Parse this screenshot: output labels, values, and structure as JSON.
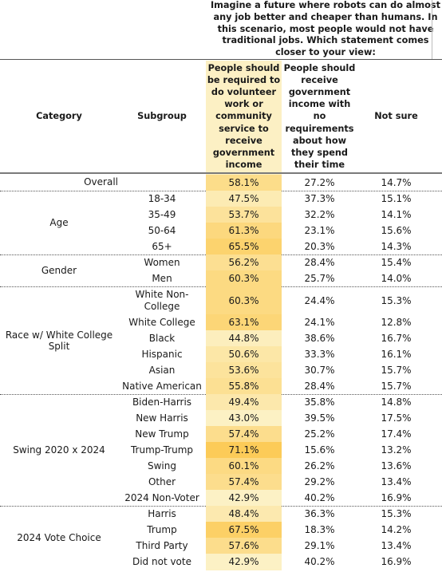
{
  "question": "Imagine a future where robots can do almost any job better and cheaper than humans. In this scenario, most people would not have traditional jobs. Which statement comes closer to your view:",
  "headers": {
    "category": "Category",
    "subgroup": "Subgroup",
    "col1": "People should be required to do volunteer work or community service to receive government income",
    "col2": "People should receive government income with no requirements about how they spend their time",
    "col3": "Not sure"
  },
  "groups": {
    "overall": "Overall",
    "age": "Age",
    "gender": "Gender",
    "race": "Race w/ White College Split",
    "swing": "Swing 2020 x 2024",
    "vote": "2024 Vote Choice"
  },
  "rows": [
    {
      "sub": "",
      "c1": "58.1%",
      "c2": "27.2%",
      "c3": "14.7%"
    },
    {
      "sub": "18-34",
      "c1": "47.5%",
      "c2": "37.3%",
      "c3": "15.1%"
    },
    {
      "sub": "35-49",
      "c1": "53.7%",
      "c2": "32.2%",
      "c3": "14.1%"
    },
    {
      "sub": "50-64",
      "c1": "61.3%",
      "c2": "23.1%",
      "c3": "15.6%"
    },
    {
      "sub": "65+",
      "c1": "65.5%",
      "c2": "20.3%",
      "c3": "14.3%"
    },
    {
      "sub": "Women",
      "c1": "56.2%",
      "c2": "28.4%",
      "c3": "15.4%"
    },
    {
      "sub": "Men",
      "c1": "60.3%",
      "c2": "25.7%",
      "c3": "14.0%"
    },
    {
      "sub": "White Non-College",
      "c1": "60.3%",
      "c2": "24.4%",
      "c3": "15.3%"
    },
    {
      "sub": "White College",
      "c1": "63.1%",
      "c2": "24.1%",
      "c3": "12.8%"
    },
    {
      "sub": "Black",
      "c1": "44.8%",
      "c2": "38.6%",
      "c3": "16.7%"
    },
    {
      "sub": "Hispanic",
      "c1": "50.6%",
      "c2": "33.3%",
      "c3": "16.1%"
    },
    {
      "sub": "Asian",
      "c1": "53.6%",
      "c2": "30.7%",
      "c3": "15.7%"
    },
    {
      "sub": "Native American",
      "c1": "55.8%",
      "c2": "28.4%",
      "c3": "15.7%"
    },
    {
      "sub": "Biden-Harris",
      "c1": "49.4%",
      "c2": "35.8%",
      "c3": "14.8%"
    },
    {
      "sub": "New Harris",
      "c1": "43.0%",
      "c2": "39.5%",
      "c3": "17.5%"
    },
    {
      "sub": "New Trump",
      "c1": "57.4%",
      "c2": "25.2%",
      "c3": "17.4%"
    },
    {
      "sub": "Trump-Trump",
      "c1": "71.1%",
      "c2": "15.6%",
      "c3": "13.2%"
    },
    {
      "sub": "Swing",
      "c1": "60.1%",
      "c2": "26.2%",
      "c3": "13.6%"
    },
    {
      "sub": "Other",
      "c1": "57.4%",
      "c2": "29.2%",
      "c3": "13.4%"
    },
    {
      "sub": "2024 Non-Voter",
      "c1": "42.9%",
      "c2": "40.2%",
      "c3": "16.9%"
    },
    {
      "sub": "Harris",
      "c1": "48.4%",
      "c2": "36.3%",
      "c3": "15.3%"
    },
    {
      "sub": "Trump",
      "c1": "67.5%",
      "c2": "18.3%",
      "c3": "14.2%"
    },
    {
      "sub": "Third Party",
      "c1": "57.6%",
      "c2": "29.1%",
      "c3": "13.4%"
    },
    {
      "sub": "Did not vote",
      "c1": "42.9%",
      "c2": "40.2%",
      "c3": "16.9%"
    }
  ]
}
